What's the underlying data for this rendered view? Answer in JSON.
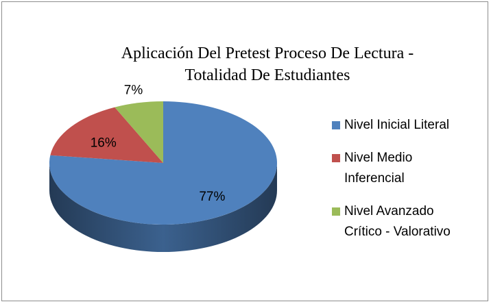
{
  "chart_data": {
    "type": "pie",
    "title": "Aplicación Del Pretest Proceso De Lectura - Totalidad De Estudiantes",
    "categories": [
      "Nivel Inicial Literal",
      "Nivel Medio Inferencial",
      "Nivel Avanzado Crítico - Valorativo"
    ],
    "values": [
      77,
      16,
      7
    ],
    "value_labels": [
      "77%",
      "16%",
      "7%"
    ],
    "colors": [
      "#4f81bd",
      "#c0504d",
      "#9bbb59"
    ],
    "legend": "right"
  }
}
